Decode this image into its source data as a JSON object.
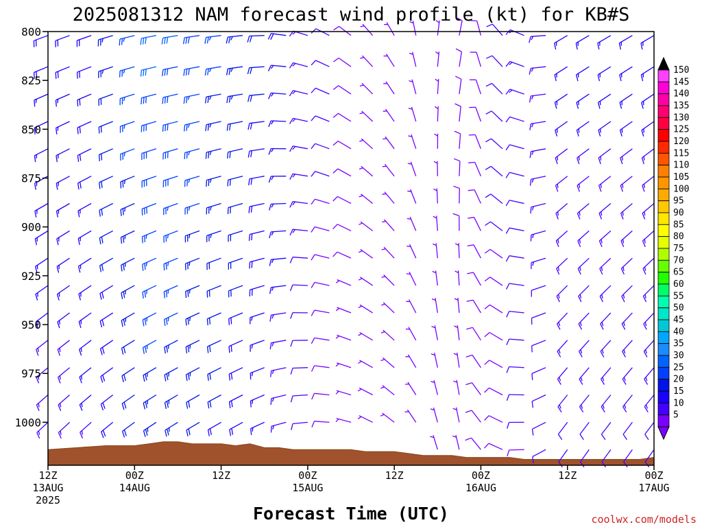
{
  "chart_data": {
    "type": "wind-barb-profile",
    "title": "2025081312 NAM forecast wind profile (kt) for KB#S",
    "xlabel": "Forecast Time (UTC)",
    "ylabel": "",
    "y_ticks": [
      800,
      825,
      850,
      875,
      900,
      925,
      950,
      975,
      1000
    ],
    "ylim": [
      800,
      1022
    ],
    "y_reversed": true,
    "x_ticks": [
      {
        "hour": 0,
        "line1": "12Z",
        "line2": "13AUG",
        "line3": "2025"
      },
      {
        "hour": 12,
        "line1": "00Z",
        "line2": "14AUG",
        "line3": ""
      },
      {
        "hour": 24,
        "line1": "12Z",
        "line2": "",
        "line3": ""
      },
      {
        "hour": 36,
        "line1": "00Z",
        "line2": "15AUG",
        "line3": ""
      },
      {
        "hour": 48,
        "line1": "12Z",
        "line2": "",
        "line3": ""
      },
      {
        "hour": 60,
        "line1": "00Z",
        "line2": "16AUG",
        "line3": ""
      },
      {
        "hour": 72,
        "line1": "12Z",
        "line2": "",
        "line3": ""
      },
      {
        "hour": 84,
        "line1": "00Z",
        "line2": "17AUG",
        "line3": ""
      }
    ],
    "xlim": [
      0,
      84
    ],
    "barb_levels_hpa": [
      802,
      818,
      832,
      846,
      860,
      874,
      888,
      902,
      916,
      930,
      944,
      958,
      972,
      986,
      1000,
      1014
    ],
    "colorbar": {
      "levels": [
        5,
        10,
        15,
        20,
        25,
        30,
        35,
        40,
        45,
        50,
        55,
        60,
        65,
        70,
        75,
        80,
        85,
        90,
        95,
        100,
        105,
        110,
        115,
        120,
        125,
        130,
        135,
        140,
        145,
        150
      ],
      "colors": [
        "#7a00ff",
        "#4400ff",
        "#1a00ff",
        "#0014e6",
        "#0040ff",
        "#0064ff",
        "#1a8cff",
        "#00a6ff",
        "#00c8d6",
        "#00e6c8",
        "#00ffb0",
        "#00ff66",
        "#22ff00",
        "#66ff00",
        "#b0ff00",
        "#e6ff00",
        "#ffff00",
        "#ffe600",
        "#ffc800",
        "#ffaa00",
        "#ff9500",
        "#ff8000",
        "#ff5500",
        "#ff2a00",
        "#ff0000",
        "#ff0040",
        "#ff0073",
        "#ff00a6",
        "#ff00d9",
        "#ff40ff"
      ]
    },
    "surface_pressure": {
      "hours": [
        0,
        4,
        8,
        12,
        14,
        16,
        18,
        20,
        22,
        24,
        26,
        28,
        30,
        32,
        34,
        36,
        38,
        40,
        42,
        44,
        46,
        48,
        50,
        52,
        54,
        56,
        58,
        60,
        62,
        64,
        66,
        68,
        70,
        72,
        74,
        76,
        78,
        80,
        82,
        84
      ],
      "hpa": [
        1014,
        1013,
        1012,
        1012,
        1011,
        1010,
        1010,
        1011,
        1011,
        1011,
        1012,
        1011,
        1013,
        1013,
        1014,
        1014,
        1014,
        1014,
        1014,
        1015,
        1015,
        1015,
        1016,
        1017,
        1017,
        1017,
        1018,
        1018,
        1018,
        1018,
        1019,
        1019,
        1019,
        1019,
        1019,
        1019,
        1019,
        1019,
        1019,
        1018
      ]
    },
    "wind_regimes": [
      {
        "from_hour": 0,
        "to_hour": 10,
        "direction_deg": 250,
        "speed_kt": 18
      },
      {
        "from_hour": 10,
        "to_hour": 22,
        "direction_deg": 260,
        "speed_kt": 32
      },
      {
        "from_hour": 22,
        "to_hour": 36,
        "direction_deg": 265,
        "speed_kt": 22
      },
      {
        "from_hour": 36,
        "to_hour": 44,
        "direction_deg": 300,
        "speed_kt": 10
      },
      {
        "from_hour": 44,
        "to_hour": 52,
        "direction_deg": 330,
        "speed_kt": 5
      },
      {
        "from_hour": 52,
        "to_hour": 60,
        "direction_deg": 20,
        "speed_kt": 8
      },
      {
        "from_hour": 60,
        "to_hour": 84,
        "direction_deg": 240,
        "speed_kt": 16
      }
    ]
  },
  "credit": "coolwx.com/models"
}
